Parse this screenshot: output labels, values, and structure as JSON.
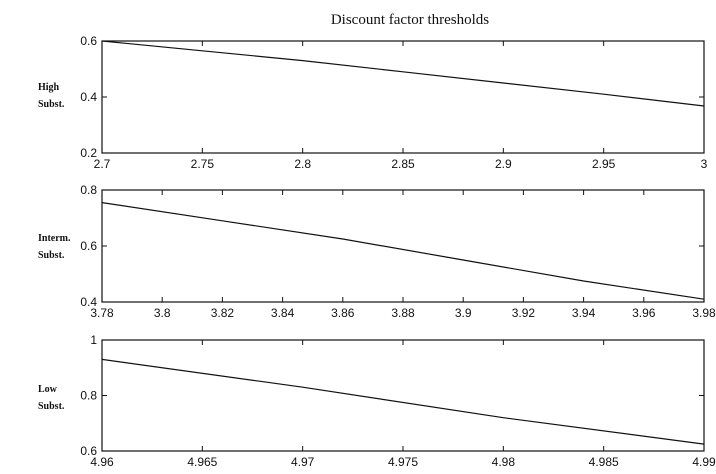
{
  "title": "Discount factor thresholds",
  "chart_data": [
    {
      "type": "line",
      "row_label": [
        "High",
        "Subst."
      ],
      "xlim": [
        2.7,
        3.0
      ],
      "ylim": [
        0.2,
        0.6
      ],
      "xticks": [
        "2.7",
        "2.75",
        "2.8",
        "2.85",
        "2.9",
        "2.95",
        "3"
      ],
      "yticks": [
        "0.2",
        "0.4",
        "0.6"
      ],
      "x": [
        2.7,
        2.75,
        2.8,
        2.85,
        2.9,
        2.95,
        3.0
      ],
      "y": [
        0.6,
        0.565,
        0.53,
        0.49,
        0.45,
        0.41,
        0.368
      ],
      "grid": false
    },
    {
      "type": "line",
      "row_label": [
        "Interm.",
        "Subst."
      ],
      "xlim": [
        3.78,
        3.98
      ],
      "ylim": [
        0.4,
        0.8
      ],
      "xticks": [
        "3.78",
        "3.8",
        "3.82",
        "3.84",
        "3.86",
        "3.88",
        "3.9",
        "3.92",
        "3.94",
        "3.96",
        "3.98"
      ],
      "yticks": [
        "0.4",
        "0.6",
        "0.8"
      ],
      "x": [
        3.78,
        3.82,
        3.86,
        3.9,
        3.94,
        3.98
      ],
      "y": [
        0.755,
        0.69,
        0.625,
        0.55,
        0.475,
        0.41
      ],
      "grid": false
    },
    {
      "type": "line",
      "row_label": [
        "Low",
        "Subst."
      ],
      "xlim": [
        4.96,
        4.99
      ],
      "ylim": [
        0.6,
        1.0
      ],
      "xticks": [
        "4.96",
        "4.965",
        "4.97",
        "4.975",
        "4.98",
        "4.985",
        "4.99"
      ],
      "yticks": [
        "0.6",
        "0.8",
        "1"
      ],
      "x": [
        4.96,
        4.97,
        4.98,
        4.99
      ],
      "y": [
        0.93,
        0.83,
        0.72,
        0.625
      ],
      "grid": false
    }
  ]
}
